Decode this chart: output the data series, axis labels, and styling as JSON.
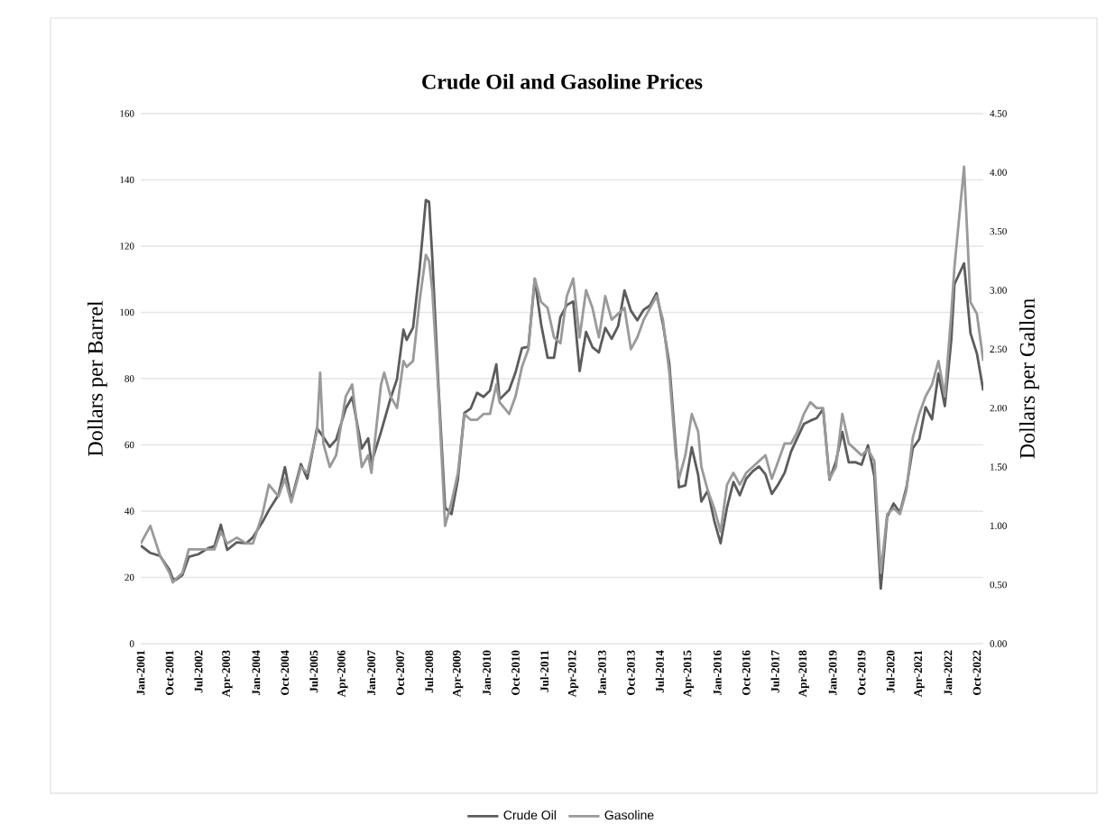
{
  "chart_data": {
    "type": "line",
    "title": "Crude Oil and Gasoline Prices",
    "ylabel": "Dollars per Barrel",
    "y2label": "Dollars per Gallon",
    "xlim": [
      "2001-01",
      "2022-12"
    ],
    "xticks": [
      {
        "value": "2001-01",
        "label": "Jan-2001"
      },
      {
        "value": "2001-10",
        "label": "Oct-2001"
      },
      {
        "value": "2002-07",
        "label": "Jul-2002"
      },
      {
        "value": "2003-04",
        "label": "Apr-2003"
      },
      {
        "value": "2004-01",
        "label": "Jan-2004"
      },
      {
        "value": "2004-10",
        "label": "Oct-2004"
      },
      {
        "value": "2005-07",
        "label": "Jul-2005"
      },
      {
        "value": "2006-04",
        "label": "Apr-2006"
      },
      {
        "value": "2007-01",
        "label": "Jan-2007"
      },
      {
        "value": "2007-10",
        "label": "Oct-2007"
      },
      {
        "value": "2008-07",
        "label": "Jul-2008"
      },
      {
        "value": "2009-04",
        "label": "Apr-2009"
      },
      {
        "value": "2010-01",
        "label": "Jan-2010"
      },
      {
        "value": "2010-10",
        "label": "Oct-2010"
      },
      {
        "value": "2011-07",
        "label": "Jul-2011"
      },
      {
        "value": "2012-04",
        "label": "Apr-2012"
      },
      {
        "value": "2013-01",
        "label": "Jan-2013"
      },
      {
        "value": "2013-10",
        "label": "Oct-2013"
      },
      {
        "value": "2014-07",
        "label": "Jul-2014"
      },
      {
        "value": "2015-04",
        "label": "Apr-2015"
      },
      {
        "value": "2016-01",
        "label": "Jan-2016"
      },
      {
        "value": "2016-10",
        "label": "Oct-2016"
      },
      {
        "value": "2017-07",
        "label": "Jul-2017"
      },
      {
        "value": "2018-04",
        "label": "Apr-2018"
      },
      {
        "value": "2019-01",
        "label": "Jan-2019"
      },
      {
        "value": "2019-10",
        "label": "Oct-2019"
      },
      {
        "value": "2020-07",
        "label": "Jul-2020"
      },
      {
        "value": "2021-04",
        "label": "Apr-2021"
      },
      {
        "value": "2022-01",
        "label": "Jan-2022"
      },
      {
        "value": "2022-10",
        "label": "Oct-2022"
      }
    ],
    "ylim": [
      0,
      160
    ],
    "yticks": [
      0,
      20,
      40,
      60,
      80,
      100,
      120,
      140,
      160
    ],
    "y2lim": [
      0,
      4.5
    ],
    "y2ticks": [
      {
        "value": 0,
        "label": "0.00"
      },
      {
        "value": 0.5,
        "label": "0.50"
      },
      {
        "value": 1,
        "label": "1.00"
      },
      {
        "value": 1.5,
        "label": "1.50"
      },
      {
        "value": 2,
        "label": "2.00"
      },
      {
        "value": 2.5,
        "label": "2.50"
      },
      {
        "value": 3,
        "label": "3.00"
      },
      {
        "value": 3.5,
        "label": "3.50"
      },
      {
        "value": 4,
        "label": "4.00"
      },
      {
        "value": 4.5,
        "label": "4.50"
      }
    ],
    "grid": "y",
    "legend": "bottom",
    "line_style": "solid",
    "series": [
      {
        "name": "Crude Oil",
        "color": "#5c5c5c",
        "x": [
          "2001-01",
          "2001-04",
          "2001-07",
          "2001-10",
          "2001-11",
          "2001-12",
          "2002-02",
          "2002-04",
          "2002-07",
          "2002-10",
          "2002-12",
          "2003-02",
          "2003-04",
          "2003-07",
          "2003-10",
          "2003-12",
          "2004-03",
          "2004-05",
          "2004-08",
          "2004-10",
          "2004-12",
          "2005-03",
          "2005-05",
          "2005-08",
          "2005-10",
          "2005-12",
          "2006-02",
          "2006-05",
          "2006-07",
          "2006-10",
          "2006-12",
          "2007-01",
          "2007-04",
          "2007-07",
          "2007-09",
          "2007-11",
          "2007-12",
          "2008-02",
          "2008-04",
          "2008-06",
          "2008-07",
          "2008-08",
          "2008-10",
          "2008-12",
          "2009-02",
          "2009-04",
          "2009-06",
          "2009-08",
          "2009-10",
          "2009-12",
          "2010-02",
          "2010-04",
          "2010-05",
          "2010-08",
          "2010-10",
          "2010-12",
          "2011-02",
          "2011-04",
          "2011-06",
          "2011-08",
          "2011-10",
          "2011-12",
          "2012-02",
          "2012-04",
          "2012-06",
          "2012-08",
          "2012-10",
          "2012-12",
          "2013-02",
          "2013-04",
          "2013-06",
          "2013-08",
          "2013-10",
          "2013-12",
          "2014-02",
          "2014-04",
          "2014-06",
          "2014-08",
          "2014-10",
          "2014-12",
          "2015-01",
          "2015-03",
          "2015-05",
          "2015-07",
          "2015-08",
          "2015-10",
          "2015-12",
          "2016-02",
          "2016-04",
          "2016-06",
          "2016-08",
          "2016-10",
          "2016-12",
          "2017-02",
          "2017-04",
          "2017-06",
          "2017-08",
          "2017-10",
          "2017-12",
          "2018-02",
          "2018-04",
          "2018-06",
          "2018-08",
          "2018-10",
          "2018-12",
          "2019-02",
          "2019-04",
          "2019-06",
          "2019-08",
          "2019-10",
          "2019-12",
          "2020-02",
          "2020-04",
          "2020-06",
          "2020-08",
          "2020-10",
          "2020-12",
          "2021-02",
          "2021-04",
          "2021-06",
          "2021-08",
          "2021-10",
          "2021-12",
          "2022-02",
          "2022-03",
          "2022-06",
          "2022-08",
          "2022-10",
          "2022-12"
        ],
        "values": [
          29.6,
          27.4,
          26.5,
          22.2,
          19.6,
          19.3,
          20.7,
          26.2,
          27.0,
          28.8,
          29.4,
          35.9,
          28.3,
          30.6,
          30.3,
          32.1,
          36.7,
          40.3,
          44.9,
          53.3,
          43.2,
          54.2,
          49.8,
          65.0,
          62.4,
          59.4,
          61.6,
          71.0,
          74.4,
          58.9,
          62.0,
          54.6,
          63.9,
          74.1,
          79.9,
          94.8,
          91.7,
          95.4,
          112.6,
          133.9,
          133.4,
          116.7,
          76.6,
          41.1,
          39.1,
          49.6,
          69.6,
          71.0,
          75.7,
          74.5,
          76.4,
          84.3,
          73.7,
          76.6,
          81.9,
          89.2,
          89.6,
          110.0,
          96.3,
          86.3,
          86.3,
          98.6,
          102.2,
          103.3,
          82.3,
          94.1,
          89.5,
          87.9,
          95.3,
          92.0,
          95.8,
          106.6,
          100.5,
          97.6,
          100.8,
          102.1,
          105.8,
          96.5,
          84.4,
          59.3,
          47.2,
          47.8,
          59.3,
          50.9,
          42.9,
          46.2,
          37.2,
          30.3,
          41.1,
          48.8,
          44.8,
          49.8,
          52.0,
          53.5,
          51.1,
          45.2,
          48.1,
          51.6,
          58.0,
          62.2,
          66.3,
          67.3,
          68.1,
          70.8,
          49.5,
          55.0,
          63.9,
          54.7,
          54.8,
          54.0,
          59.9,
          50.5,
          16.6,
          38.3,
          42.3,
          39.6,
          47.1,
          59.0,
          61.7,
          71.4,
          67.7,
          81.5,
          71.7,
          91.6,
          108.5,
          114.8,
          93.7,
          87.6,
          76.4
        ]
      },
      {
        "name": "Gasoline",
        "color": "#9a9a9a",
        "axis": "y2",
        "x": [
          "2001-01",
          "2001-04",
          "2001-07",
          "2001-10",
          "2001-11",
          "2001-12",
          "2002-02",
          "2002-04",
          "2002-07",
          "2002-10",
          "2002-12",
          "2003-02",
          "2003-04",
          "2003-07",
          "2003-10",
          "2003-12",
          "2004-03",
          "2004-05",
          "2004-08",
          "2004-10",
          "2004-12",
          "2005-03",
          "2005-05",
          "2005-08",
          "2005-09",
          "2005-10",
          "2005-12",
          "2006-02",
          "2006-05",
          "2006-07",
          "2006-10",
          "2006-12",
          "2007-01",
          "2007-04",
          "2007-05",
          "2007-07",
          "2007-09",
          "2007-11",
          "2007-12",
          "2008-02",
          "2008-04",
          "2008-06",
          "2008-07",
          "2008-08",
          "2008-10",
          "2008-12",
          "2009-02",
          "2009-04",
          "2009-06",
          "2009-08",
          "2009-10",
          "2009-12",
          "2010-02",
          "2010-04",
          "2010-05",
          "2010-08",
          "2010-10",
          "2010-12",
          "2011-02",
          "2011-04",
          "2011-06",
          "2011-08",
          "2011-10",
          "2011-12",
          "2012-02",
          "2012-04",
          "2012-06",
          "2012-08",
          "2012-10",
          "2012-12",
          "2013-02",
          "2013-04",
          "2013-06",
          "2013-08",
          "2013-10",
          "2013-12",
          "2014-02",
          "2014-04",
          "2014-06",
          "2014-08",
          "2014-10",
          "2014-12",
          "2015-01",
          "2015-03",
          "2015-05",
          "2015-07",
          "2015-08",
          "2015-10",
          "2015-12",
          "2016-02",
          "2016-04",
          "2016-06",
          "2016-08",
          "2016-10",
          "2016-12",
          "2017-02",
          "2017-04",
          "2017-06",
          "2017-08",
          "2017-10",
          "2017-12",
          "2018-02",
          "2018-04",
          "2018-06",
          "2018-08",
          "2018-10",
          "2018-12",
          "2019-02",
          "2019-04",
          "2019-06",
          "2019-08",
          "2019-10",
          "2019-12",
          "2020-02",
          "2020-04",
          "2020-06",
          "2020-08",
          "2020-10",
          "2020-12",
          "2021-02",
          "2021-04",
          "2021-06",
          "2021-08",
          "2021-10",
          "2021-12",
          "2022-02",
          "2022-03",
          "2022-06",
          "2022-08",
          "2022-10",
          "2022-12"
        ],
        "values": [
          0.85,
          1.0,
          0.75,
          0.6,
          0.52,
          0.55,
          0.6,
          0.8,
          0.8,
          0.8,
          0.8,
          0.95,
          0.85,
          0.9,
          0.85,
          0.85,
          1.1,
          1.35,
          1.25,
          1.4,
          1.2,
          1.5,
          1.45,
          1.8,
          2.3,
          1.7,
          1.5,
          1.6,
          2.1,
          2.2,
          1.5,
          1.6,
          1.45,
          2.2,
          2.3,
          2.1,
          2.0,
          2.4,
          2.35,
          2.4,
          2.9,
          3.3,
          3.25,
          3.0,
          2.1,
          1.0,
          1.2,
          1.45,
          1.95,
          1.9,
          1.9,
          1.95,
          1.95,
          2.2,
          2.05,
          1.95,
          2.1,
          2.35,
          2.5,
          3.1,
          2.9,
          2.85,
          2.6,
          2.55,
          2.95,
          3.1,
          2.6,
          3.0,
          2.85,
          2.6,
          2.95,
          2.75,
          2.8,
          2.85,
          2.5,
          2.6,
          2.75,
          2.85,
          2.95,
          2.75,
          2.3,
          1.6,
          1.4,
          1.6,
          1.95,
          1.8,
          1.5,
          1.3,
          1.15,
          0.95,
          1.35,
          1.45,
          1.35,
          1.45,
          1.5,
          1.55,
          1.6,
          1.4,
          1.55,
          1.7,
          1.7,
          1.8,
          1.95,
          2.05,
          2.0,
          2.0,
          1.4,
          1.5,
          1.95,
          1.7,
          1.65,
          1.6,
          1.65,
          1.55,
          0.6,
          1.1,
          1.15,
          1.1,
          1.3,
          1.75,
          1.95,
          2.1,
          2.2,
          2.4,
          2.1,
          2.8,
          3.2,
          4.05,
          2.9,
          2.8,
          2.4
        ]
      }
    ]
  }
}
